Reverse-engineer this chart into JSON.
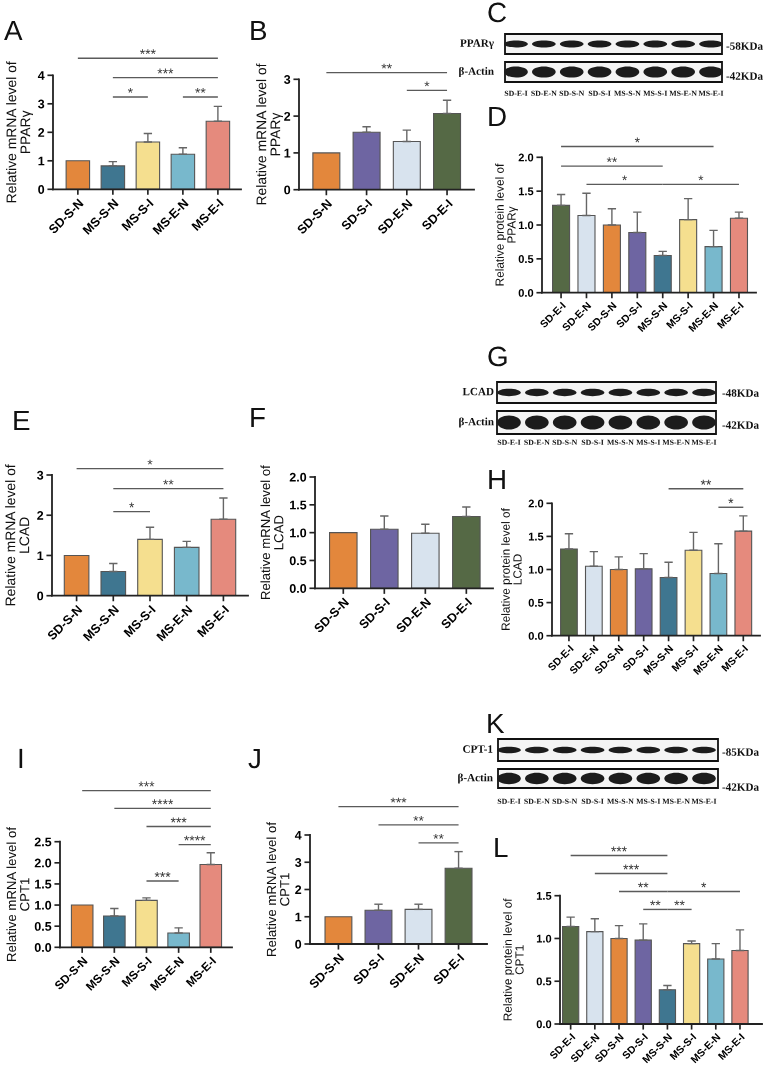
{
  "chart_data": [
    {
      "type": "bar",
      "title": "A",
      "ylabel": "Relative mRNA level of\nPPARγ",
      "categories": [
        "SD-S-N",
        "MS-S-N",
        "MS-S-I",
        "MS-E-N",
        "MS-E-I"
      ],
      "values": [
        1.0,
        0.82,
        1.66,
        1.23,
        2.39
      ],
      "colors": [
        "#e3873c",
        "#3f7690",
        "#f5df8f",
        "#78b8cc",
        "#e58a7d"
      ],
      "errors": [
        null,
        [
          0.82,
          0.97
        ],
        [
          1.66,
          1.96
        ],
        [
          1.23,
          1.46
        ],
        [
          2.39,
          2.91
        ]
      ],
      "ylim": [
        0,
        4
      ],
      "yticks": [
        0,
        1,
        2,
        3,
        4
      ],
      "annotations": [
        "***",
        "***",
        "*",
        "**"
      ]
    },
    {
      "type": "bar",
      "title": "B",
      "ylabel": "Relative mRNA level of\nPPARγ",
      "categories": [
        "SD-S-N",
        "SD-S-I",
        "SD-E-N",
        "SD-E-I"
      ],
      "values": [
        1.0,
        1.56,
        1.31,
        2.07
      ],
      "colors": [
        "#e3873c",
        "#6e65a2",
        "#d8e3ee",
        "#556945"
      ],
      "errors": [
        null,
        [
          1.56,
          1.71
        ],
        [
          1.31,
          1.62
        ],
        [
          2.07,
          2.43
        ]
      ],
      "ylim": [
        0,
        3
      ],
      "yticks": [
        0,
        1,
        2,
        3
      ],
      "annotations": [
        "**",
        "*"
      ]
    },
    {
      "type": "other",
      "title": "C",
      "categories": [
        "SD-E-I",
        "SD-E-N",
        "SD-S-N",
        "SD-S-I",
        "MS-S-N",
        "MS-S-I",
        "MS-E-N",
        "MS-E-I"
      ],
      "annotations": [
        "PPARγ",
        "β-Actin",
        "-58KDa",
        "-42KDa"
      ]
    },
    {
      "type": "bar",
      "title": "D",
      "ylabel": "Relative protein level of\nPPARγ",
      "categories": [
        "SD-E-I",
        "SD-E-N",
        "SD-S-N",
        "SD-S-I",
        "MS-S-N",
        "MS-S-I",
        "MS-E-N",
        "MS-E-I"
      ],
      "values": [
        1.29,
        1.14,
        1.0,
        0.89,
        0.55,
        1.08,
        0.68,
        1.1
      ],
      "colors": [
        "#556945",
        "#d8e3ee",
        "#e3873c",
        "#6e65a2",
        "#3f7690",
        "#f5df8f",
        "#78b8cc",
        "#e58a7d"
      ],
      "errors": [
        [
          1.29,
          1.45
        ],
        [
          1.14,
          1.47
        ],
        [
          1.0,
          1.24
        ],
        [
          0.89,
          1.19
        ],
        [
          0.55,
          0.61
        ],
        [
          1.08,
          1.39
        ],
        [
          0.68,
          0.92
        ],
        [
          1.1,
          1.19
        ]
      ],
      "ylim": [
        0,
        2
      ],
      "yticks": [
        {
          "value": 0,
          "label": "0.0"
        },
        {
          "value": 0.5,
          "label": "0.5"
        },
        {
          "value": 1,
          "label": "1.0"
        },
        {
          "value": 1.5,
          "label": "1.5"
        },
        {
          "value": 2,
          "label": "2.0"
        }
      ],
      "annotations": [
        "*",
        "**",
        "*",
        "*"
      ]
    },
    {
      "type": "bar",
      "title": "E",
      "ylabel": "Relative mRNA level of\nLCAD",
      "categories": [
        "SD-S-N",
        "MS-S-N",
        "MS-S-I",
        "MS-E-N",
        "MS-E-I"
      ],
      "values": [
        1.0,
        0.6,
        1.4,
        1.2,
        1.9
      ],
      "colors": [
        "#e3873c",
        "#3f7690",
        "#f5df8f",
        "#78b8cc",
        "#e58a7d"
      ],
      "errors": [
        null,
        [
          0.6,
          0.8
        ],
        [
          1.4,
          1.7
        ],
        [
          1.2,
          1.35
        ],
        [
          1.9,
          2.43
        ]
      ],
      "ylim": [
        0,
        3
      ],
      "yticks": [
        0,
        1,
        2,
        3
      ],
      "annotations": [
        "*",
        "**",
        "*"
      ]
    },
    {
      "type": "bar",
      "title": "F",
      "ylabel": "Relative mRNA level of\nLCAD",
      "categories": [
        "SD-S-N",
        "SD-S-I",
        "SD-E-N",
        "SD-E-I"
      ],
      "values": [
        1.0,
        1.06,
        0.99,
        1.29
      ],
      "colors": [
        "#e3873c",
        "#6e65a2",
        "#d8e3ee",
        "#556945"
      ],
      "errors": [
        null,
        [
          1.06,
          1.3
        ],
        [
          0.99,
          1.15
        ],
        [
          1.29,
          1.46
        ]
      ],
      "ylim": [
        0,
        2
      ],
      "yticks": [
        {
          "value": 0,
          "label": "0.0"
        },
        {
          "value": 0.5,
          "label": "0.5"
        },
        {
          "value": 1,
          "label": "1.0"
        },
        {
          "value": 1.5,
          "label": "1.5"
        },
        {
          "value": 2,
          "label": "2.0"
        }
      ]
    },
    {
      "type": "other",
      "title": "G",
      "categories": [
        "SD-E-I",
        "SD-E-N",
        "SD-S-N",
        "SD-S-I",
        "MS-S-N",
        "MS-S-I",
        "MS-E-N",
        "MS-E-I"
      ],
      "annotations": [
        "LCAD",
        "β-Actin",
        "-48KDa",
        "-42KDa"
      ]
    },
    {
      "type": "bar",
      "title": "H",
      "ylabel": "Relative protein level of\nLCAD",
      "categories": [
        "SD-E-I",
        "SD-E-N",
        "SD-S-N",
        "SD-S-I",
        "MS-S-N",
        "MS-S-I",
        "MS-E-N",
        "MS-E-I"
      ],
      "values": [
        1.31,
        1.05,
        1.0,
        1.01,
        0.88,
        1.29,
        0.94,
        1.58
      ],
      "colors": [
        "#556945",
        "#d8e3ee",
        "#e3873c",
        "#6e65a2",
        "#3f7690",
        "#f5df8f",
        "#78b8cc",
        "#e58a7d"
      ],
      "errors": [
        [
          1.31,
          1.54
        ],
        [
          1.05,
          1.27
        ],
        [
          1.0,
          1.19
        ],
        [
          1.01,
          1.24
        ],
        [
          0.88,
          1.11
        ],
        [
          1.29,
          1.56
        ],
        [
          0.94,
          1.39
        ],
        [
          1.58,
          1.81
        ]
      ],
      "ylim": [
        0,
        2
      ],
      "yticks": [
        {
          "value": 0,
          "label": "0.0"
        },
        {
          "value": 0.5,
          "label": "0.5"
        },
        {
          "value": 1,
          "label": "1.0"
        },
        {
          "value": 1.5,
          "label": "1.5"
        },
        {
          "value": 2,
          "label": "2.0"
        }
      ],
      "annotations": [
        "**",
        "*"
      ]
    },
    {
      "type": "bar",
      "title": "I",
      "ylabel": "Relative mRNA level of\nCPT1",
      "categories": [
        "SD-S-N",
        "MS-S-N",
        "MS-S-I",
        "MS-E-N",
        "MS-E-I"
      ],
      "values": [
        1.0,
        0.74,
        1.11,
        0.34,
        1.96
      ],
      "colors": [
        "#e3873c",
        "#3f7690",
        "#f5df8f",
        "#78b8cc",
        "#e58a7d"
      ],
      "errors": [
        null,
        [
          0.74,
          0.92
        ],
        [
          1.11,
          1.17
        ],
        [
          0.34,
          0.46
        ],
        [
          1.96,
          2.24
        ]
      ],
      "ylim": [
        0,
        2.5
      ],
      "yticks": [
        {
          "value": 0,
          "label": "0.0"
        },
        {
          "value": 0.5,
          "label": "0.5"
        },
        {
          "value": 1,
          "label": "1.0"
        },
        {
          "value": 1.5,
          "label": "1.5"
        },
        {
          "value": 2,
          "label": "2.0"
        },
        {
          "value": 2.5,
          "label": "2.5"
        }
      ],
      "annotations": [
        "***",
        "****",
        "***",
        "****",
        "***"
      ]
    },
    {
      "type": "bar",
      "title": "J",
      "ylabel": "Relative mRNA level of\nCPT1",
      "categories": [
        "SD-S-N",
        "SD-S-I",
        "SD-E-N",
        "SD-E-I"
      ],
      "values": [
        1.0,
        1.24,
        1.27,
        2.78
      ],
      "colors": [
        "#e3873c",
        "#6e65a2",
        "#d8e3ee",
        "#556945"
      ],
      "errors": [
        null,
        [
          1.24,
          1.46
        ],
        [
          1.27,
          1.46
        ],
        [
          2.78,
          3.39
        ]
      ],
      "ylim": [
        0,
        4
      ],
      "yticks": [
        0,
        1,
        2,
        3,
        4
      ],
      "annotations": [
        "***",
        "**",
        "**"
      ]
    },
    {
      "type": "other",
      "title": "K",
      "categories": [
        "SD-E-I",
        "SD-E-N",
        "SD-S-N",
        "SD-S-I",
        "MS-S-N",
        "MS-S-I",
        "MS-E-N",
        "MS-E-I"
      ],
      "annotations": [
        "CPT-1",
        "β-Actin",
        "-85KDa",
        "-42KDa"
      ]
    },
    {
      "type": "bar",
      "title": "L",
      "ylabel": "Relative protein level of\nCPT1",
      "categories": [
        "SD-E-I",
        "SD-E-N",
        "SD-S-N",
        "SD-S-I",
        "MS-S-N",
        "MS-S-I",
        "MS-E-N",
        "MS-E-I"
      ],
      "values": [
        1.14,
        1.08,
        1.0,
        0.98,
        0.4,
        0.94,
        0.76,
        0.86
      ],
      "colors": [
        "#556945",
        "#d8e3ee",
        "#e3873c",
        "#6e65a2",
        "#3f7690",
        "#f5df8f",
        "#78b8cc",
        "#e58a7d"
      ],
      "errors": [
        [
          1.14,
          1.25
        ],
        [
          1.08,
          1.23
        ],
        [
          1.0,
          1.15
        ],
        [
          0.98,
          1.17
        ],
        [
          0.4,
          0.45
        ],
        [
          0.94,
          0.97
        ],
        [
          0.76,
          0.94
        ],
        [
          0.86,
          1.1
        ]
      ],
      "ylim": [
        0,
        1.5
      ],
      "yticks": [
        {
          "value": 0,
          "label": "0.0"
        },
        {
          "value": 0.5,
          "label": "0.5"
        },
        {
          "value": 1,
          "label": "1.0"
        },
        {
          "value": 1.5,
          "label": "1.5"
        }
      ],
      "annotations": [
        "***",
        "***",
        "**",
        "*",
        "**",
        "**"
      ]
    }
  ]
}
